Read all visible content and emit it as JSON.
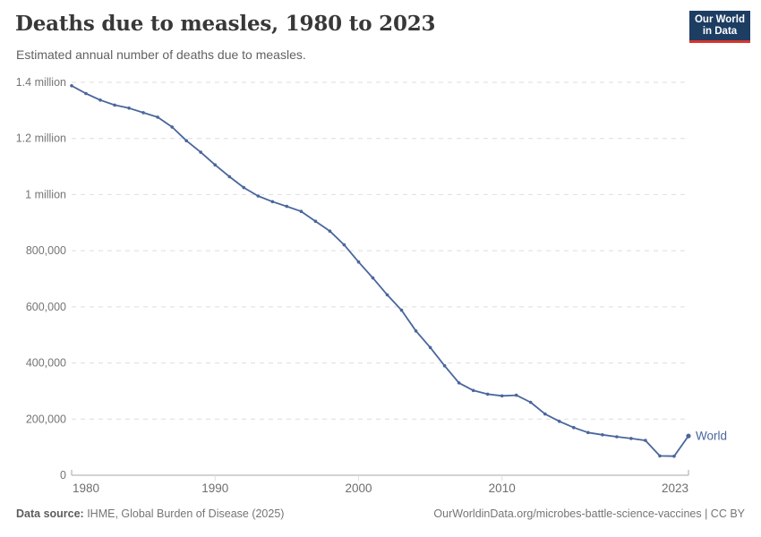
{
  "header": {
    "title": "Deaths due to measles, 1980 to 2023",
    "subtitle": "Estimated annual number of deaths due to measles.",
    "logo": {
      "line1": "Our World",
      "line2": "in Data"
    }
  },
  "footer": {
    "source_label": "Data source:",
    "source_text": " IHME, Global Burden of Disease (2025)",
    "attribution": "OurWorldinData.org/microbes-battle-science-vaccines | CC BY"
  },
  "colors": {
    "line": "#4a669c",
    "logo_navy": "#1d3d63",
    "logo_red": "#d8352c",
    "grid": "#dedede",
    "axis": "#a5a5a5",
    "tick_text": "#757575",
    "title_text": "#383838"
  },
  "chart_data": {
    "type": "line",
    "title": "Deaths due to measles, 1980 to 2023",
    "subtitle": "Estimated annual number of deaths due to measles.",
    "xlabel": "",
    "ylabel": "",
    "xlim": [
      1980,
      2023
    ],
    "ylim": [
      0,
      1400000
    ],
    "grid": "horizontal-dashed",
    "legend_position": "end-of-line",
    "x_ticks": [
      1980,
      1990,
      2000,
      2010,
      2023
    ],
    "y_ticks": [
      {
        "value": 1400000,
        "label": "1.4 million"
      },
      {
        "value": 1200000,
        "label": "1.2 million"
      },
      {
        "value": 1000000,
        "label": "1 million"
      },
      {
        "value": 800000,
        "label": "800,000"
      },
      {
        "value": 600000,
        "label": "600,000"
      },
      {
        "value": 400000,
        "label": "400,000"
      },
      {
        "value": 200000,
        "label": "200,000"
      },
      {
        "value": 0,
        "label": "0"
      }
    ],
    "x": [
      1980,
      1981,
      1982,
      1983,
      1984,
      1985,
      1986,
      1987,
      1988,
      1989,
      1990,
      1991,
      1992,
      1993,
      1994,
      1995,
      1996,
      1997,
      1998,
      1999,
      2000,
      2001,
      2002,
      2003,
      2004,
      2005,
      2006,
      2007,
      2008,
      2009,
      2010,
      2011,
      2012,
      2013,
      2014,
      2015,
      2016,
      2017,
      2018,
      2019,
      2020,
      2021,
      2022,
      2023
    ],
    "series": [
      {
        "name": "World",
        "values": [
          1388000,
          1360000,
          1337000,
          1319000,
          1308000,
          1292000,
          1276000,
          1241000,
          1192000,
          1151000,
          1106000,
          1064000,
          1025000,
          995000,
          975000,
          958000,
          940000,
          905000,
          870000,
          821000,
          760000,
          703000,
          643000,
          588000,
          514000,
          455000,
          390000,
          329000,
          302000,
          289000,
          283000,
          285000,
          260000,
          218000,
          192000,
          170000,
          152000,
          144000,
          137000,
          131000,
          124000,
          69000,
          68000,
          140000
        ]
      }
    ]
  }
}
